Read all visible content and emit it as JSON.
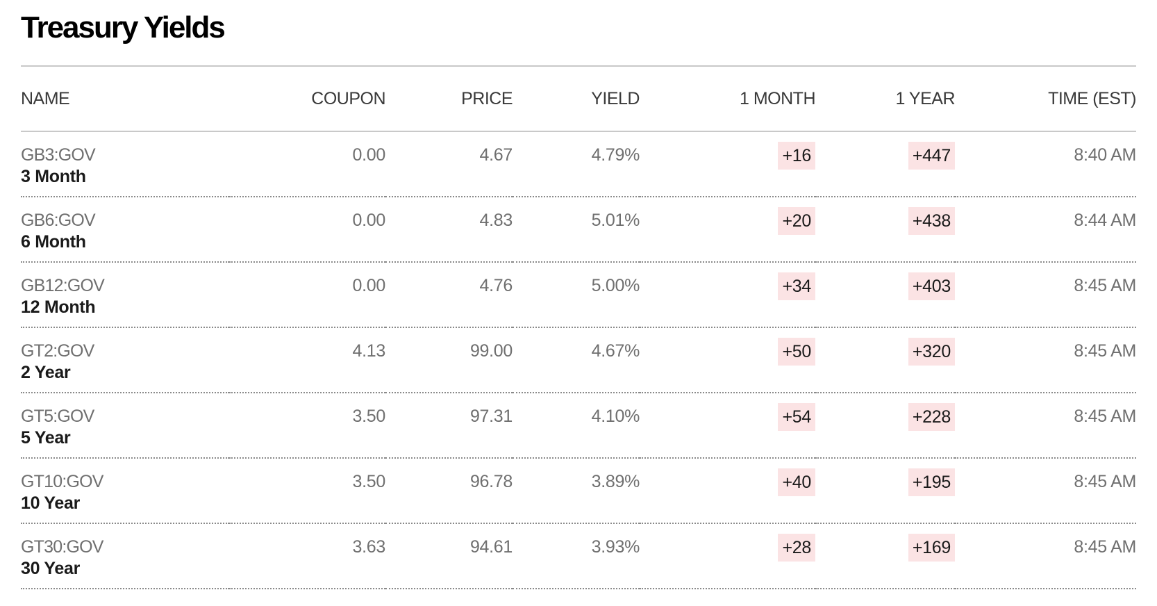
{
  "title": "Treasury Yields",
  "colors": {
    "change_bg": "#fbe3e4",
    "rule": "#c9c9c9"
  },
  "columns": {
    "name": "NAME",
    "coupon": "COUPON",
    "price": "PRICE",
    "yield": "YIELD",
    "one_month": "1 MONTH",
    "one_year": "1 YEAR",
    "time": "TIME (EST)"
  },
  "rows": [
    {
      "ticker": "GB3:GOV",
      "label": "3 Month",
      "coupon": "0.00",
      "price": "4.67",
      "yield": "4.79%",
      "one_month": "+16",
      "one_year": "+447",
      "time": "8:40 AM"
    },
    {
      "ticker": "GB6:GOV",
      "label": "6 Month",
      "coupon": "0.00",
      "price": "4.83",
      "yield": "5.01%",
      "one_month": "+20",
      "one_year": "+438",
      "time": "8:44 AM"
    },
    {
      "ticker": "GB12:GOV",
      "label": "12 Month",
      "coupon": "0.00",
      "price": "4.76",
      "yield": "5.00%",
      "one_month": "+34",
      "one_year": "+403",
      "time": "8:45 AM"
    },
    {
      "ticker": "GT2:GOV",
      "label": "2 Year",
      "coupon": "4.13",
      "price": "99.00",
      "yield": "4.67%",
      "one_month": "+50",
      "one_year": "+320",
      "time": "8:45 AM"
    },
    {
      "ticker": "GT5:GOV",
      "label": "5 Year",
      "coupon": "3.50",
      "price": "97.31",
      "yield": "4.10%",
      "one_month": "+54",
      "one_year": "+228",
      "time": "8:45 AM"
    },
    {
      "ticker": "GT10:GOV",
      "label": "10 Year",
      "coupon": "3.50",
      "price": "96.78",
      "yield": "3.89%",
      "one_month": "+40",
      "one_year": "+195",
      "time": "8:45 AM"
    },
    {
      "ticker": "GT30:GOV",
      "label": "30 Year",
      "coupon": "3.63",
      "price": "94.61",
      "yield": "3.93%",
      "one_month": "+28",
      "one_year": "+169",
      "time": "8:45 AM"
    }
  ]
}
